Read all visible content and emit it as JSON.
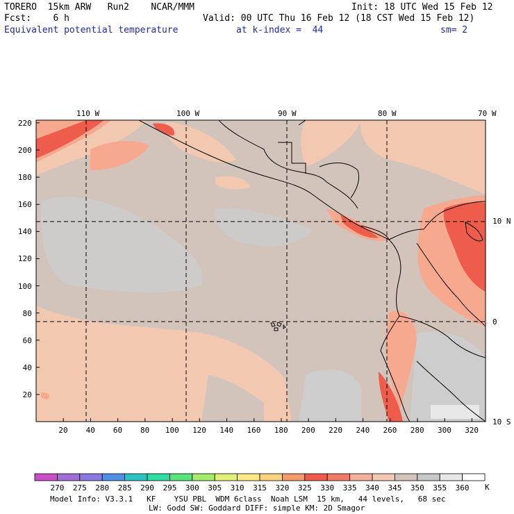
{
  "header": {
    "model": "TORERO  15km ARW   Run2    NCAR/MMM",
    "init": "Init: 18 UTC Wed 15 Feb 12",
    "fcst": "Fcst:    6 h",
    "valid": "Valid: 00 UTC Thu 16 Feb 12 (18 CST Wed 15 Feb 12)",
    "field": "Equivalent potential temperature",
    "level": "at k-index =  44",
    "smooth": "sm= 2"
  },
  "map": {
    "lon_labels": [
      "110 W",
      "100 W",
      "90 W",
      "80 W",
      "70 W"
    ],
    "lat_labels": [
      "10 N",
      "0",
      "10 S"
    ],
    "x_ticks": [
      "20",
      "40",
      "60",
      "80",
      "100",
      "120",
      "140",
      "160",
      "180",
      "200",
      "220",
      "240",
      "260",
      "280",
      "300",
      "320"
    ],
    "y_ticks": [
      "20",
      "40",
      "60",
      "80",
      "100",
      "120",
      "140",
      "160",
      "180",
      "200",
      "220"
    ],
    "colors": {
      "background_field": "#d2c3bb",
      "cool_patch": "#cdcdcd",
      "warm_light": "#f2c9b0",
      "warm_mid": "#f6a98e",
      "warm_high": "#ee5c4c"
    }
  },
  "colorbar": {
    "unit": "K",
    "labels": [
      "270",
      "275",
      "280",
      "285",
      "290",
      "295",
      "300",
      "305",
      "310",
      "315",
      "320",
      "325",
      "330",
      "335",
      "340",
      "345",
      "350",
      "355",
      "360"
    ],
    "colors": [
      "#cc4fc9",
      "#a06ed6",
      "#8a7be0",
      "#4f8fe6",
      "#2dc3c0",
      "#30dca4",
      "#58e47c",
      "#a6ec6c",
      "#e2f07a",
      "#fbea84",
      "#fbd27e",
      "#f69a6a",
      "#ef5a4c",
      "#f27a6a",
      "#f6b09e",
      "#f2c9b4",
      "#d2c3bb",
      "#c8c8c8",
      "#e8e8e8",
      "#ffffff"
    ]
  },
  "footer": {
    "line1": "Model Info: V3.3.1   KF    YSU PBL  WDM 6class  Noah LSM  15 km,   44 levels,   68 sec",
    "line2": "LW: Godd SW: Goddard DIFF: simple KM: 2D Smagor"
  }
}
